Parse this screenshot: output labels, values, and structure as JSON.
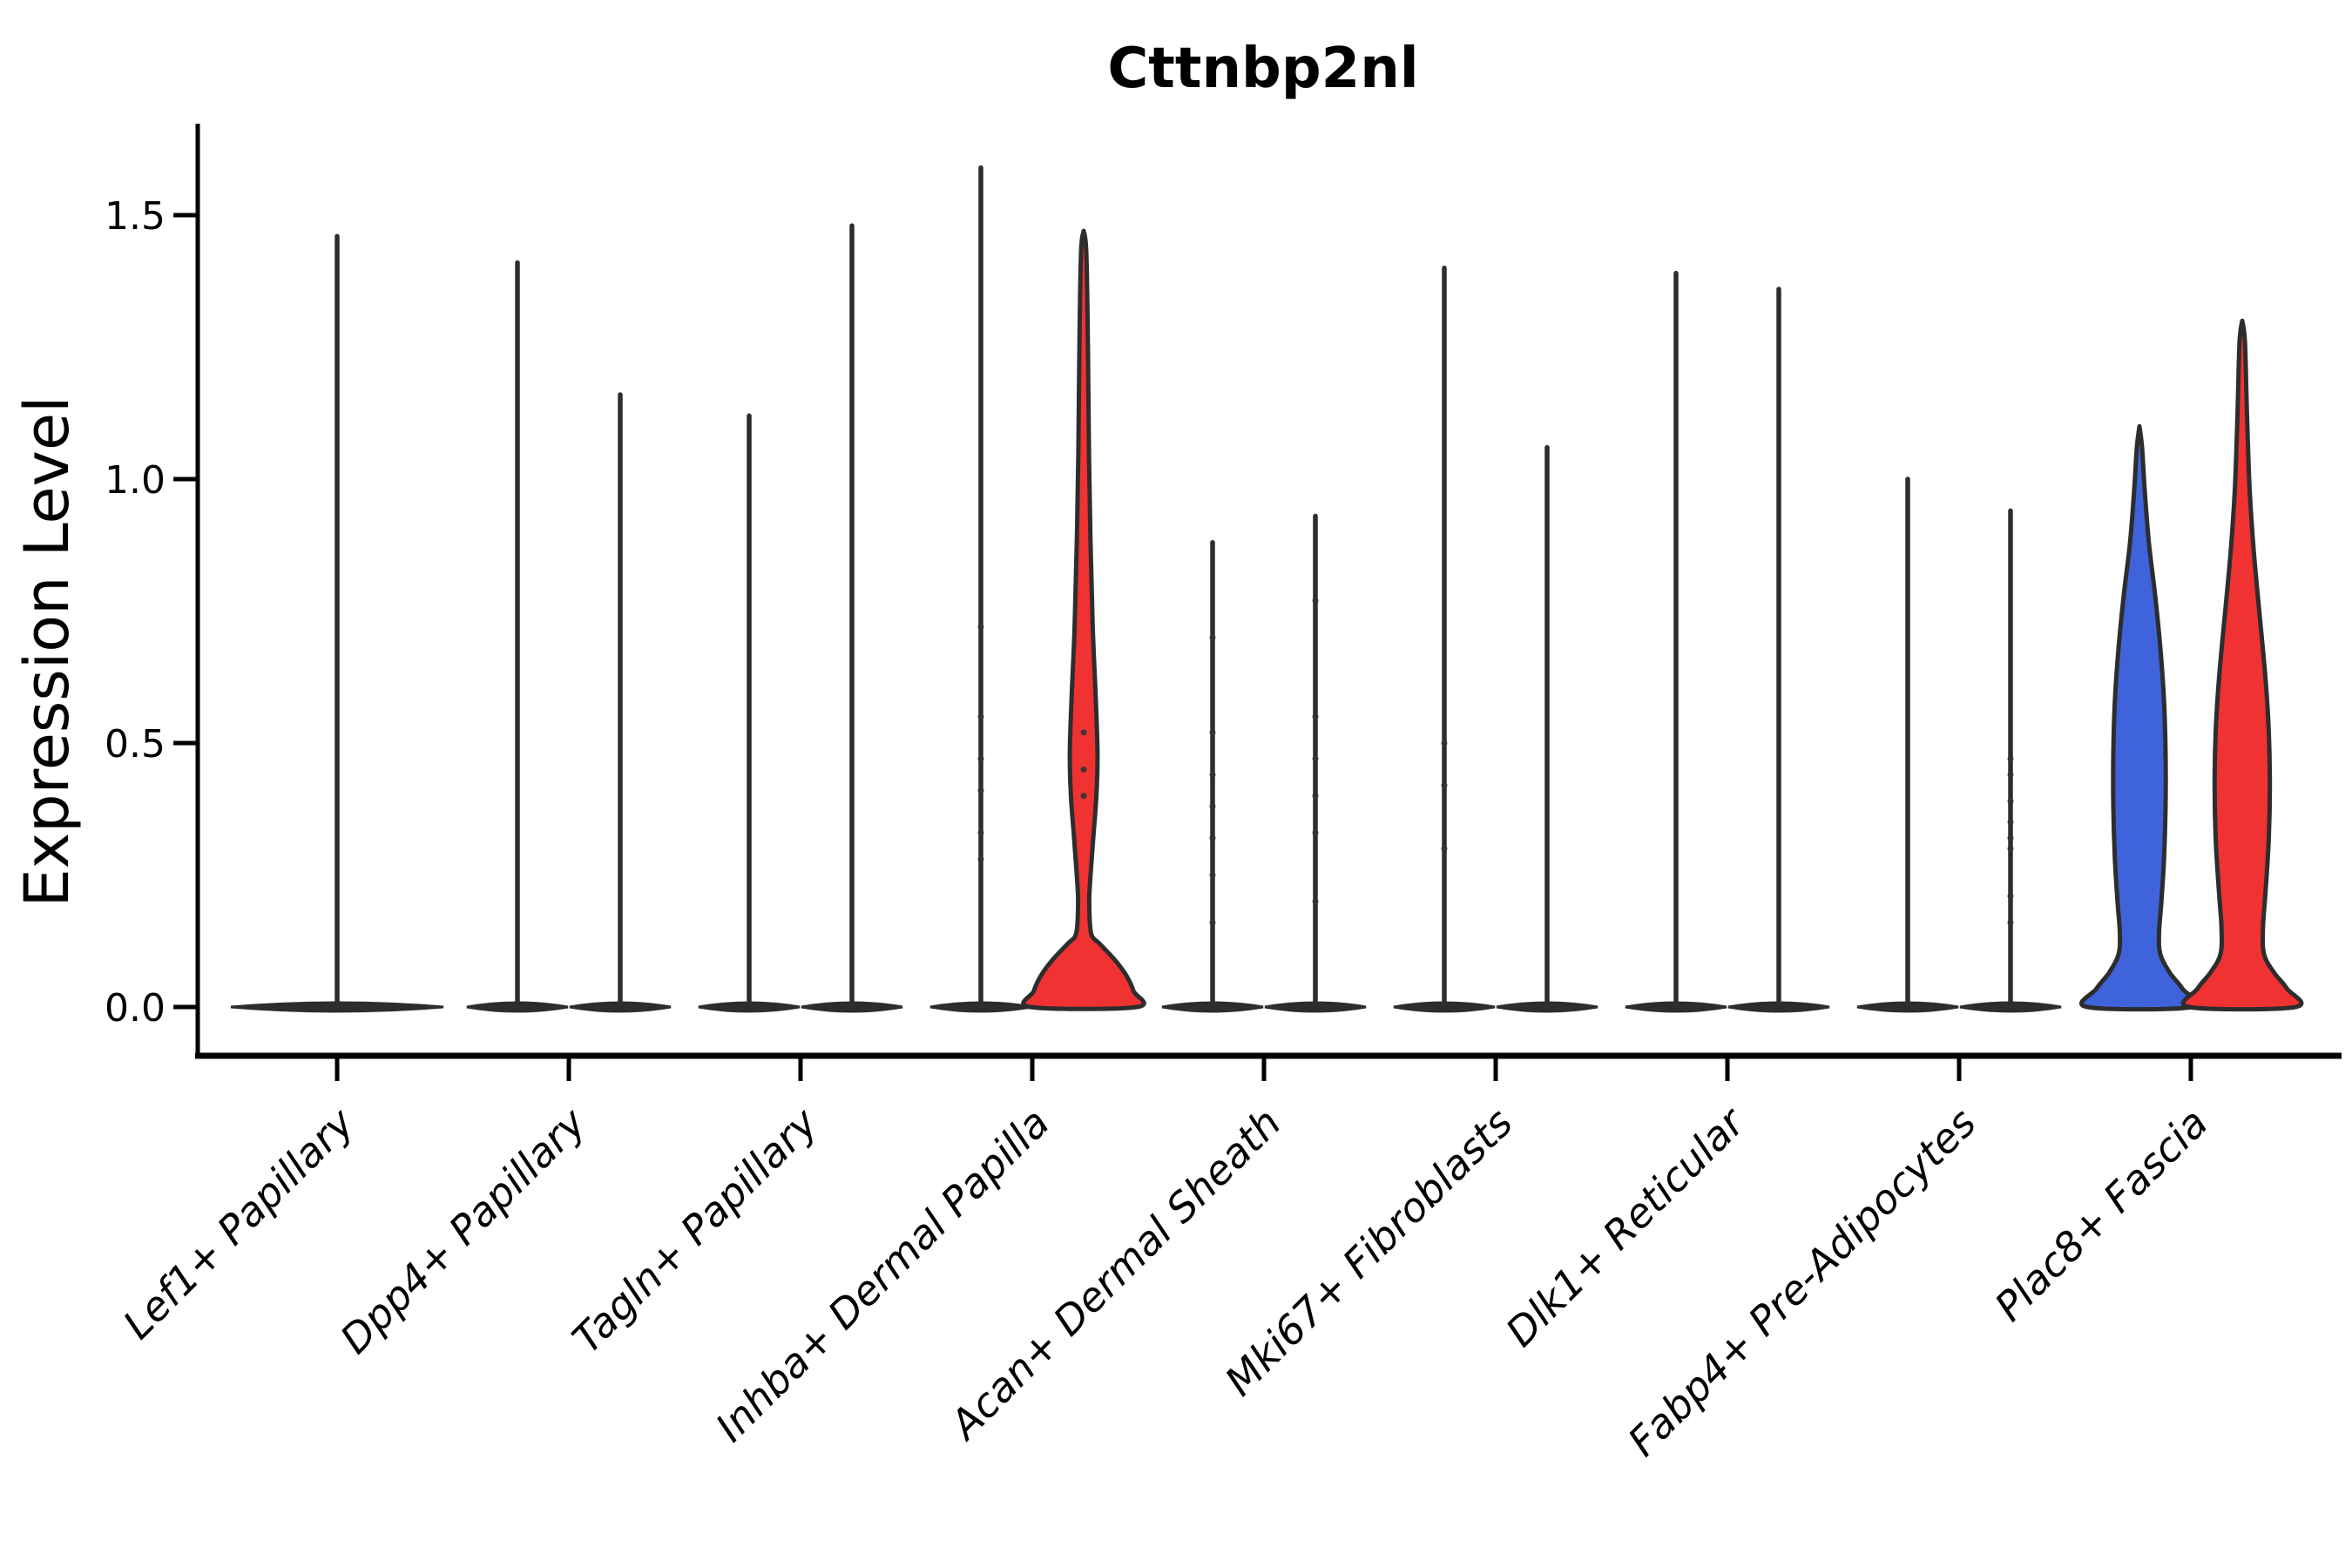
{
  "chart_data": {
    "type": "violin",
    "title": "Cttnbp2nl",
    "ylabel": "Expression Level",
    "xlabel": "",
    "yticks": [
      0.0,
      0.5,
      1.0,
      1.5
    ],
    "ytick_labels": [
      "0.0",
      "0.5",
      "1.0",
      "1.5"
    ],
    "ylim": [
      -0.09,
      1.67
    ],
    "grid": false,
    "legend": "none",
    "x_tick_label_rotation_deg": 45,
    "categories": [
      "Lef1+ Papillary",
      "Dpp4+ Papillary",
      "Tagln+ Papillary",
      "Inhba+ Dermal Papilla",
      "Acan+ Dermal Sheath",
      "Mki67+ Fibroblasts",
      "Dlk1+ Reticular",
      "Fabp4+ Pre-Adipocytes",
      "Plac8+ Fascia"
    ],
    "colors": {
      "group_blue_fill": "#3F63DB",
      "group_red_fill": "#F03233",
      "violin_outline": "#2D2D2D",
      "axis": "#000000",
      "jitter_dot": "#333333"
    },
    "violins": [
      {
        "category": 0,
        "side": "center",
        "type": "spike",
        "fill": "none",
        "max_expression": 1.46,
        "dots": []
      },
      {
        "category": 1,
        "side": "left",
        "type": "spike",
        "fill": "none",
        "max_expression": 1.41,
        "dots": []
      },
      {
        "category": 1,
        "side": "right",
        "type": "spike",
        "fill": "none",
        "max_expression": 1.16,
        "dots": []
      },
      {
        "category": 2,
        "side": "left",
        "type": "spike",
        "fill": "none",
        "max_expression": 1.12,
        "dots": []
      },
      {
        "category": 2,
        "side": "right",
        "type": "spike",
        "fill": "none",
        "max_expression": 1.48,
        "dots": []
      },
      {
        "category": 3,
        "side": "left",
        "type": "spike",
        "fill": "none",
        "max_expression": 1.59,
        "dots": [
          0.72,
          0.55,
          0.47,
          0.41,
          0.33,
          0.28
        ]
      },
      {
        "category": 3,
        "side": "right",
        "type": "filled",
        "fill": "red",
        "max_expression": 1.47,
        "dots": [
          0.52,
          0.45,
          0.4
        ],
        "profile": [
          [
            1.47,
            0.0
          ],
          [
            1.43,
            0.05
          ],
          [
            1.25,
            0.08
          ],
          [
            1.05,
            0.1
          ],
          [
            0.88,
            0.13
          ],
          [
            0.72,
            0.17
          ],
          [
            0.58,
            0.23
          ],
          [
            0.48,
            0.26
          ],
          [
            0.4,
            0.24
          ],
          [
            0.32,
            0.18
          ],
          [
            0.25,
            0.13
          ],
          [
            0.2,
            0.105
          ],
          [
            0.14,
            0.14
          ],
          [
            0.12,
            0.3
          ],
          [
            0.09,
            0.58
          ],
          [
            0.06,
            0.8
          ],
          [
            0.03,
            0.94
          ],
          [
            0.0,
            1.0
          ]
        ]
      },
      {
        "category": 4,
        "side": "left",
        "type": "spike",
        "fill": "none",
        "max_expression": 0.88,
        "dots": [
          0.7,
          0.52,
          0.44,
          0.38,
          0.32,
          0.25,
          0.16
        ]
      },
      {
        "category": 4,
        "side": "right",
        "type": "spike",
        "fill": "none",
        "max_expression": 0.93,
        "dots": [
          0.77,
          0.55,
          0.47,
          0.4,
          0.33,
          0.2
        ]
      },
      {
        "category": 5,
        "side": "left",
        "type": "spike",
        "fill": "none",
        "max_expression": 1.4,
        "dots": [
          0.5,
          0.42,
          0.3
        ]
      },
      {
        "category": 5,
        "side": "right",
        "type": "spike",
        "fill": "none",
        "max_expression": 1.06,
        "dots": []
      },
      {
        "category": 6,
        "side": "left",
        "type": "spike",
        "fill": "none",
        "max_expression": 1.39,
        "dots": []
      },
      {
        "category": 6,
        "side": "right",
        "type": "spike",
        "fill": "none",
        "max_expression": 1.36,
        "dots": []
      },
      {
        "category": 7,
        "side": "left",
        "type": "spike",
        "fill": "none",
        "max_expression": 1.0,
        "dots": []
      },
      {
        "category": 7,
        "side": "right",
        "type": "spike",
        "fill": "none",
        "max_expression": 0.94,
        "dots": [
          0.47,
          0.44,
          0.39,
          0.35,
          0.32,
          0.3,
          0.21,
          0.16
        ]
      },
      {
        "category": 8,
        "side": "left",
        "type": "filled",
        "fill": "blue",
        "max_expression": 1.1,
        "dots": [],
        "profile": [
          [
            1.1,
            0.0
          ],
          [
            1.06,
            0.05
          ],
          [
            0.98,
            0.1
          ],
          [
            0.88,
            0.18
          ],
          [
            0.78,
            0.3
          ],
          [
            0.68,
            0.4
          ],
          [
            0.58,
            0.47
          ],
          [
            0.48,
            0.5
          ],
          [
            0.38,
            0.5
          ],
          [
            0.28,
            0.47
          ],
          [
            0.2,
            0.42
          ],
          [
            0.14,
            0.375
          ],
          [
            0.1,
            0.4
          ],
          [
            0.065,
            0.58
          ],
          [
            0.035,
            0.82
          ],
          [
            0.0,
            1.0
          ]
        ]
      },
      {
        "category": 8,
        "side": "right",
        "type": "filled",
        "fill": "red",
        "max_expression": 1.3,
        "dots": [],
        "profile": [
          [
            1.3,
            0.0
          ],
          [
            1.26,
            0.05
          ],
          [
            1.12,
            0.09
          ],
          [
            0.98,
            0.14
          ],
          [
            0.86,
            0.22
          ],
          [
            0.74,
            0.33
          ],
          [
            0.62,
            0.44
          ],
          [
            0.52,
            0.5
          ],
          [
            0.42,
            0.52
          ],
          [
            0.32,
            0.5
          ],
          [
            0.22,
            0.44
          ],
          [
            0.15,
            0.39
          ],
          [
            0.1,
            0.41
          ],
          [
            0.065,
            0.6
          ],
          [
            0.035,
            0.84
          ],
          [
            0.0,
            1.0
          ]
        ]
      }
    ]
  }
}
